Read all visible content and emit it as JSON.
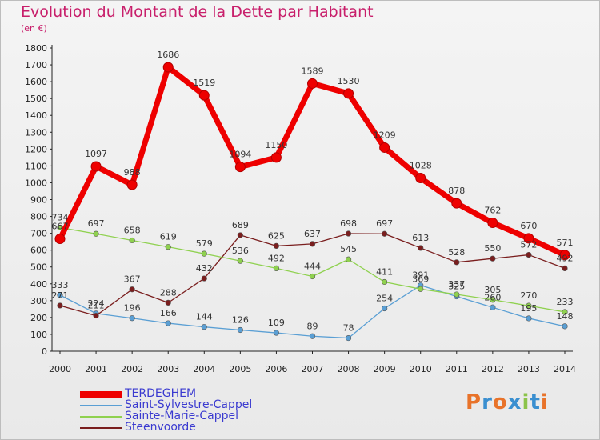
{
  "title": "Evolution du Montant de la Dette par Habitant",
  "subtitle": "(en €)",
  "logo": {
    "text": "Proxiti",
    "colors": [
      "#e8732a",
      "#3a8fd0",
      "#e8732a",
      "#3a8fd0",
      "#8bc34a",
      "#3a8fd0",
      "#e8732a"
    ]
  },
  "chart_data": {
    "type": "line",
    "x": [
      "2000",
      "2001",
      "2002",
      "2003",
      "2004",
      "2005",
      "2006",
      "2007",
      "2008",
      "2009",
      "2010",
      "2011",
      "2012",
      "2013",
      "2014"
    ],
    "ylim": [
      0,
      1800
    ],
    "yticks": [
      0,
      100,
      200,
      300,
      400,
      500,
      600,
      700,
      800,
      900,
      1000,
      1100,
      1200,
      1300,
      1400,
      1500,
      1600,
      1700,
      1800
    ],
    "grid": false,
    "legend_position": "bottom-left",
    "series": [
      {
        "name": "TERDEGHEM",
        "color": "#ee0000",
        "values": [
          667,
          1097,
          988,
          1686,
          1519,
          1094,
          1150,
          1589,
          1530,
          1209,
          1028,
          878,
          762,
          670,
          571
        ]
      },
      {
        "name": "Saint-Sylvestre-Cappel",
        "color": "#5a9fd4",
        "values": [
          333,
          224,
          196,
          166,
          144,
          126,
          109,
          89,
          78,
          254,
          391,
          325,
          260,
          195,
          148
        ]
      },
      {
        "name": "Sainte-Marie-Cappel",
        "color": "#8fd14f",
        "values": [
          734,
          697,
          658,
          619,
          579,
          536,
          492,
          444,
          545,
          411,
          369,
          337,
          305,
          270,
          233
        ]
      },
      {
        "name": "Steenvoorde",
        "color": "#7a1e1e",
        "values": [
          271,
          211,
          367,
          288,
          432,
          689,
          625,
          637,
          698,
          697,
          613,
          528,
          550,
          572,
          492
        ]
      }
    ]
  }
}
